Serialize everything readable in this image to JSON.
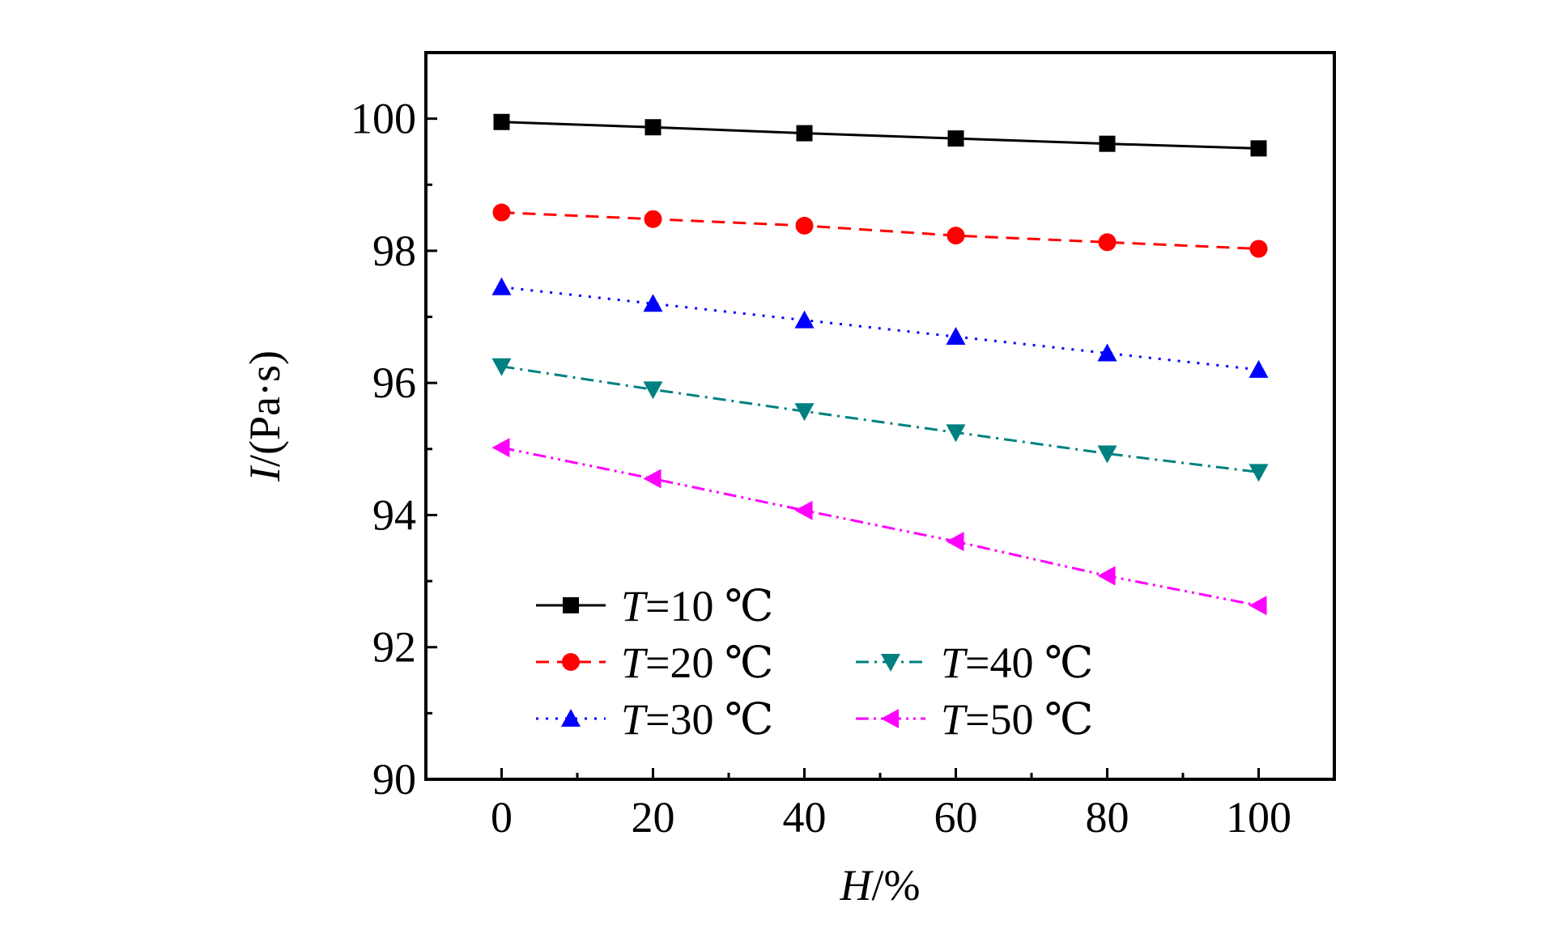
{
  "chart_data": {
    "type": "line",
    "xlabel_var": "H",
    "xlabel_unit": "/%",
    "ylabel_var": "I",
    "ylabel_unit": "/(Pa·s)",
    "xlim": [
      -10,
      110
    ],
    "ylim": [
      90,
      101
    ],
    "x_ticks": [
      0,
      20,
      40,
      60,
      80,
      100
    ],
    "y_ticks": [
      90,
      92,
      94,
      96,
      98,
      100
    ],
    "x": [
      0,
      20,
      40,
      60,
      80,
      100
    ],
    "series": [
      {
        "name_var": "T",
        "name_value": "=10 ℃",
        "values": [
          99.95,
          99.87,
          99.78,
          99.7,
          99.62,
          99.55
        ],
        "color": "#000000",
        "marker": "square",
        "dash": "solid"
      },
      {
        "name_var": "T",
        "name_value": "=20 ℃",
        "values": [
          98.58,
          98.48,
          98.38,
          98.23,
          98.13,
          98.03
        ],
        "color": "#ff0000",
        "marker": "circle",
        "dash": "dashed"
      },
      {
        "name_var": "T",
        "name_value": "=30 ℃",
        "values": [
          97.45,
          97.2,
          96.95,
          96.7,
          96.45,
          96.2
        ],
        "color": "#0000ff",
        "marker": "triangle-up",
        "dash": "dotted"
      },
      {
        "name_var": "T",
        "name_value": "=40 ℃",
        "values": [
          96.25,
          95.9,
          95.57,
          95.25,
          94.93,
          94.65
        ],
        "color": "#008080",
        "marker": "triangle-down",
        "dash": "dash-dot"
      },
      {
        "name_var": "T",
        "name_value": "=50 ℃",
        "values": [
          95.02,
          94.55,
          94.07,
          93.6,
          93.08,
          92.63
        ],
        "color": "#ff00ff",
        "marker": "triangle-left",
        "dash": "dash-dot-dot"
      }
    ],
    "legend_placement": "bottom-left, two columns"
  }
}
